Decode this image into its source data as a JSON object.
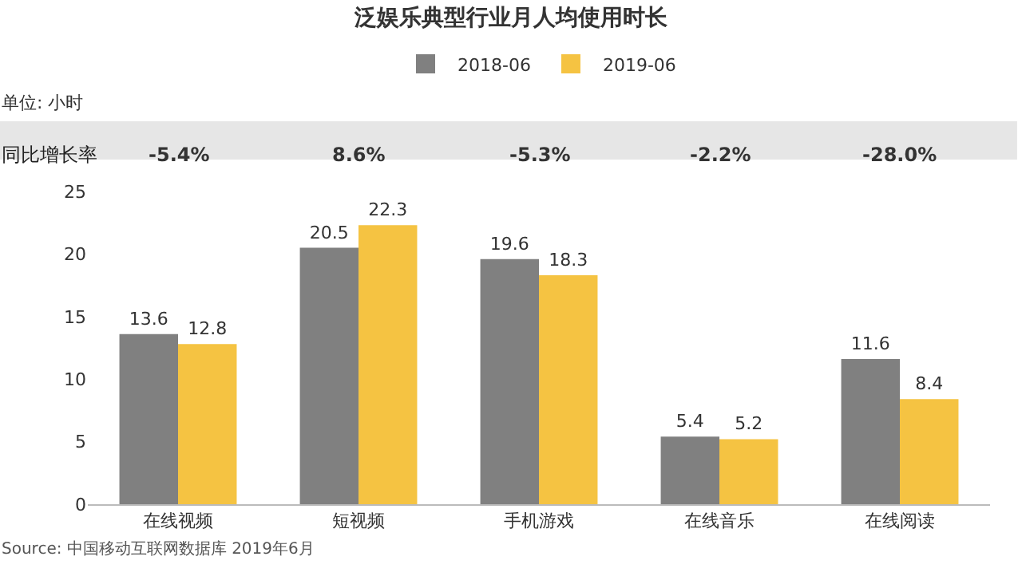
{
  "chart_data": {
    "type": "bar",
    "title": "泛娱乐典型行业月人均使用时长",
    "ylabel": "单位: 小时",
    "categories": [
      "在线视频",
      "短视频",
      "手机游戏",
      "在线音乐",
      "在线阅读"
    ],
    "series": [
      {
        "name": "2018-06",
        "color": "#808080",
        "values": [
          13.6,
          20.5,
          19.6,
          5.4,
          11.6
        ]
      },
      {
        "name": "2019-06",
        "color": "#f5c342",
        "values": [
          12.8,
          22.3,
          18.3,
          5.2,
          8.4
        ]
      }
    ],
    "ylim": [
      0,
      25
    ],
    "yticks": [
      0,
      5,
      10,
      15,
      20,
      25
    ],
    "grid": false,
    "legend": "top",
    "data_labels": true,
    "annotations": [
      "同比增长率",
      "-5.4%",
      "8.6%",
      "-5.3%",
      "-2.2%",
      "-28.0%",
      "Source: 中国移动互联网数据库 2019年6月"
    ]
  }
}
